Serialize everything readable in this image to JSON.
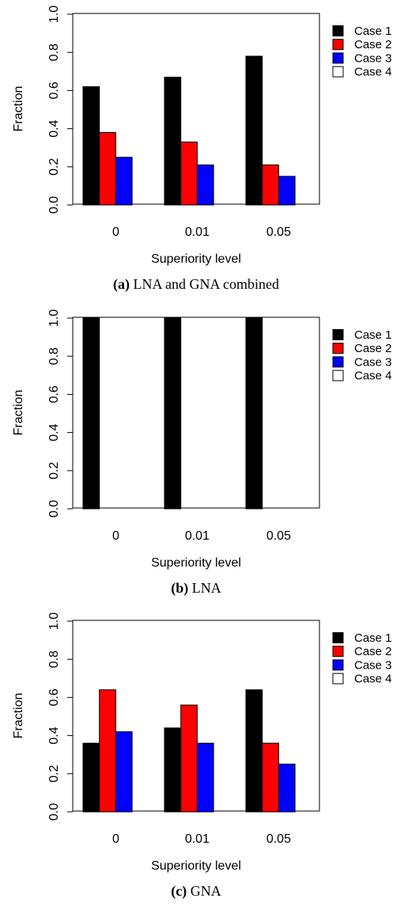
{
  "chart_data": [
    {
      "type": "bar",
      "caption_label": "(a)",
      "caption_text": " LNA and GNA combined",
      "xlabel": "Superiority level",
      "ylabel": "Fraction",
      "categories": [
        "0",
        "0.01",
        "0.05"
      ],
      "ylim": [
        0,
        1.0
      ],
      "yticks": [
        "0.0",
        "0.2",
        "0.4",
        "0.6",
        "0.8",
        "1.0"
      ],
      "legend_position": "right",
      "series": [
        {
          "name": "Case 1",
          "color": "#000000",
          "values": [
            0.62,
            0.67,
            0.78
          ]
        },
        {
          "name": "Case 2",
          "color": "#ff0000",
          "values": [
            0.38,
            0.33,
            0.21
          ]
        },
        {
          "name": "Case 3",
          "color": "#0000ff",
          "values": [
            0.25,
            0.21,
            0.15
          ]
        },
        {
          "name": "Case 4",
          "color": "#ffffff",
          "values": [
            0,
            0,
            0
          ]
        }
      ]
    },
    {
      "type": "bar",
      "caption_label": "(b)",
      "caption_text": " LNA",
      "xlabel": "Superiority level",
      "ylabel": "Fraction",
      "categories": [
        "0",
        "0.01",
        "0.05"
      ],
      "ylim": [
        0,
        1.0
      ],
      "yticks": [
        "0.0",
        "0.2",
        "0.4",
        "0.6",
        "0.8",
        "1.0"
      ],
      "legend_position": "right",
      "series": [
        {
          "name": "Case 1",
          "color": "#000000",
          "values": [
            1.0,
            1.0,
            1.0
          ]
        },
        {
          "name": "Case 2",
          "color": "#ff0000",
          "values": [
            0,
            0,
            0
          ]
        },
        {
          "name": "Case 3",
          "color": "#0000ff",
          "values": [
            0,
            0,
            0
          ]
        },
        {
          "name": "Case 4",
          "color": "#ffffff",
          "values": [
            0,
            0,
            0
          ]
        }
      ]
    },
    {
      "type": "bar",
      "caption_label": "(c)",
      "caption_text": " GNA",
      "xlabel": "Superiority level",
      "ylabel": "Fraction",
      "categories": [
        "0",
        "0.01",
        "0.05"
      ],
      "ylim": [
        0,
        1.0
      ],
      "yticks": [
        "0.0",
        "0.2",
        "0.4",
        "0.6",
        "0.8",
        "1.0"
      ],
      "legend_position": "right",
      "series": [
        {
          "name": "Case 1",
          "color": "#000000",
          "values": [
            0.36,
            0.44,
            0.64
          ]
        },
        {
          "name": "Case 2",
          "color": "#ff0000",
          "values": [
            0.64,
            0.56,
            0.36
          ]
        },
        {
          "name": "Case 3",
          "color": "#0000ff",
          "values": [
            0.42,
            0.36,
            0.25
          ]
        },
        {
          "name": "Case 4",
          "color": "#ffffff",
          "values": [
            0,
            0,
            0
          ]
        }
      ]
    }
  ]
}
